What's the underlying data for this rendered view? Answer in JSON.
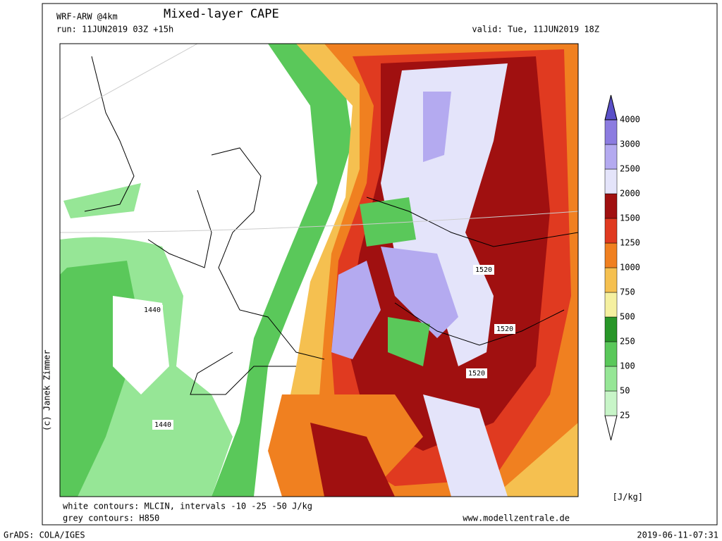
{
  "header": {
    "model": "WRF-ARW @4km",
    "title": "Mixed-layer CAPE",
    "run": "run: 11JUN2019 03Z +15h",
    "valid": "valid: Tue, 11JUN2019 18Z"
  },
  "colorbar": {
    "levels": [
      25,
      50,
      100,
      250,
      500,
      750,
      1000,
      1250,
      1500,
      2000,
      2500,
      3000,
      4000
    ],
    "colors": [
      "#ffffff",
      "#c8f5c8",
      "#96e696",
      "#5ac85a",
      "#289628",
      "#f5f0a0",
      "#f5c050",
      "#f08020",
      "#e03a20",
      "#a01010",
      "#e4e4fa",
      "#b4aaf0",
      "#8c7ce0",
      "#5a50c8"
    ],
    "unit": "[J/kg]"
  },
  "map": {
    "contour_labels": [
      "1440",
      "1440",
      "1520",
      "1520",
      "1520"
    ]
  },
  "footer": {
    "legend_lines": [
      "white contours: MLCIN, intervals -10 -25 -50 J/kg",
      "grey contours: H850"
    ],
    "credit": "(c) Janek Zimmer",
    "source": "www.modellzentrale.de",
    "software": "GrADS: COLA/IGES",
    "timestamp": "2019-06-11-07:31"
  }
}
